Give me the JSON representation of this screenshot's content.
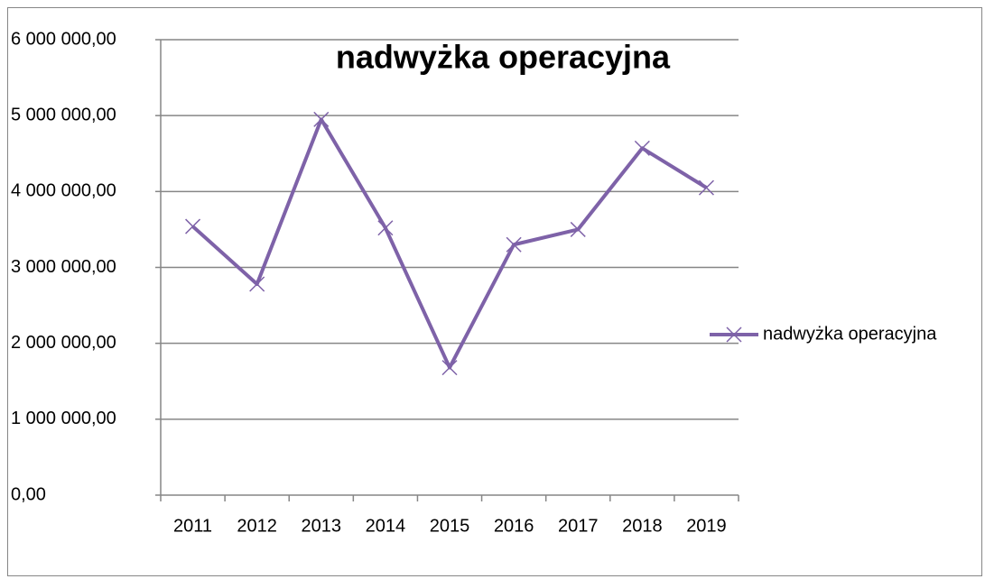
{
  "chart_data": {
    "type": "line",
    "title": "nadwyżka operacyjna",
    "categories": [
      "2011",
      "2012",
      "2013",
      "2014",
      "2015",
      "2016",
      "2017",
      "2018",
      "2019"
    ],
    "series": [
      {
        "name": "nadwyżka operacyjna",
        "color": "#7e62a8",
        "values": [
          3540000,
          2780000,
          4950000,
          3520000,
          1680000,
          3300000,
          3500000,
          4570000,
          4050000
        ]
      }
    ],
    "ylim": [
      0,
      6000000
    ],
    "yticks": [
      {
        "value": 0,
        "label": "0,00"
      },
      {
        "value": 1000000,
        "label": "1 000 000,00"
      },
      {
        "value": 2000000,
        "label": "2 000 000,00"
      },
      {
        "value": 3000000,
        "label": "3 000 000,00"
      },
      {
        "value": 4000000,
        "label": "4 000 000,00"
      },
      {
        "value": 5000000,
        "label": "5 000 000,00"
      },
      {
        "value": 6000000,
        "label": "6 000 000,00"
      }
    ],
    "grid": true,
    "legend": "right"
  }
}
